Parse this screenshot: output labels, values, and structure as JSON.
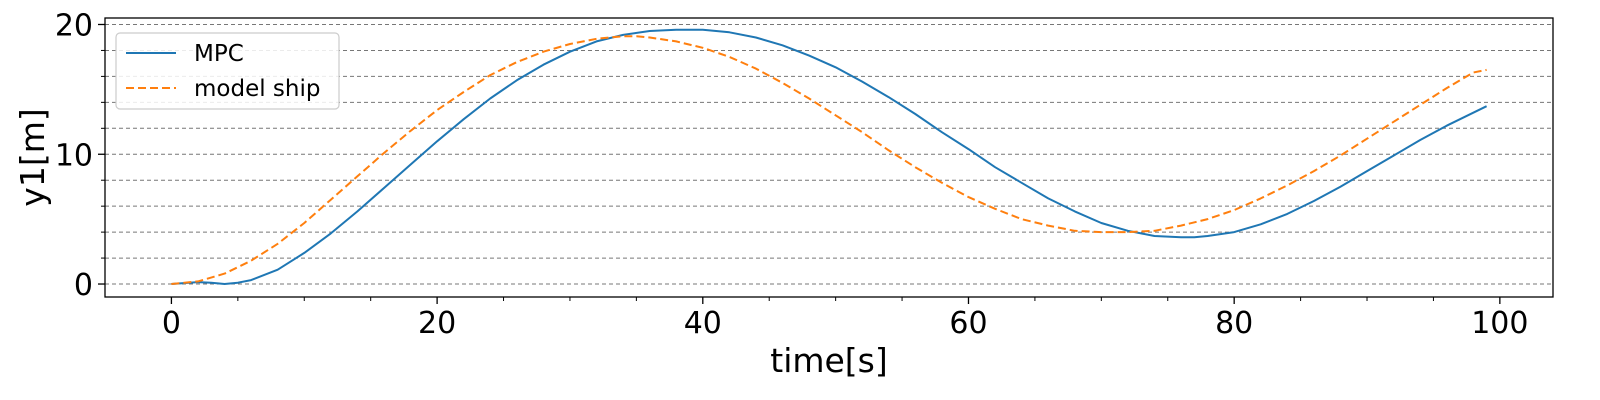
{
  "chart_data": {
    "type": "line",
    "xlabel": "time[s]",
    "ylabel": "y1[m]",
    "xlim": [
      -5,
      104
    ],
    "ylim": [
      -1,
      20.5
    ],
    "xticks": [
      0,
      20,
      40,
      60,
      80,
      100
    ],
    "yticks": [
      0,
      10,
      20
    ],
    "x_minor_step": 5,
    "y_minor_step": 2,
    "grid": "horizontal dashed on major and minor y ticks",
    "legend_position": "upper-left",
    "series": [
      {
        "name": "MPC",
        "color": "#1f77b4",
        "style": "solid",
        "x": [
          0,
          2,
          3,
          4,
          5,
          6,
          8,
          10,
          12,
          14,
          16,
          18,
          20,
          22,
          24,
          26,
          28,
          30,
          32,
          34,
          36,
          38,
          40,
          42,
          44,
          46,
          48,
          50,
          52,
          54,
          56,
          58,
          60,
          62,
          64,
          66,
          68,
          70,
          72,
          74,
          76,
          77,
          78,
          80,
          82,
          84,
          86,
          88,
          90,
          92,
          94,
          96,
          98,
          99
        ],
        "y": [
          0,
          0.15,
          0.1,
          0,
          0.1,
          0.3,
          1.1,
          2.4,
          3.9,
          5.6,
          7.4,
          9.2,
          11.0,
          12.7,
          14.3,
          15.7,
          16.9,
          17.9,
          18.7,
          19.2,
          19.5,
          19.6,
          19.6,
          19.4,
          19.0,
          18.4,
          17.6,
          16.7,
          15.6,
          14.4,
          13.1,
          11.7,
          10.4,
          9.0,
          7.8,
          6.6,
          5.6,
          4.7,
          4.1,
          3.7,
          3.6,
          3.6,
          3.7,
          4.0,
          4.6,
          5.4,
          6.4,
          7.5,
          8.7,
          9.9,
          11.1,
          12.2,
          13.2,
          13.7
        ]
      },
      {
        "name": "model ship",
        "color": "#ff7f0e",
        "style": "dashed",
        "x": [
          0,
          2,
          4,
          6,
          8,
          10,
          12,
          14,
          16,
          18,
          20,
          22,
          24,
          26,
          28,
          30,
          32,
          34,
          35,
          36,
          38,
          40,
          42,
          44,
          46,
          48,
          50,
          52,
          54,
          56,
          58,
          60,
          62,
          64,
          66,
          68,
          70,
          72,
          74,
          76,
          78,
          80,
          82,
          84,
          86,
          88,
          90,
          92,
          94,
          96,
          98,
          99
        ],
        "y": [
          0,
          0.2,
          0.8,
          1.8,
          3.1,
          4.7,
          6.5,
          8.3,
          10.1,
          11.8,
          13.4,
          14.8,
          16.1,
          17.1,
          17.9,
          18.5,
          18.9,
          19.1,
          19.1,
          19.0,
          18.7,
          18.2,
          17.5,
          16.6,
          15.5,
          14.3,
          13.0,
          11.7,
          10.3,
          9.0,
          7.8,
          6.7,
          5.8,
          5.0,
          4.5,
          4.1,
          4.0,
          4.0,
          4.1,
          4.5,
          5.0,
          5.7,
          6.6,
          7.6,
          8.7,
          9.9,
          11.2,
          12.5,
          13.8,
          15.1,
          16.3,
          16.5
        ]
      }
    ]
  }
}
